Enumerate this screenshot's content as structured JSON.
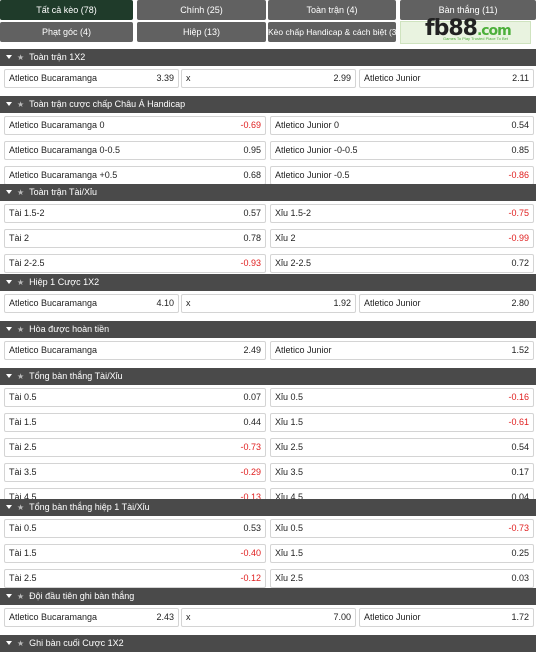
{
  "tabs": [
    {
      "label": "Tất cả kèo (78)",
      "active": true
    },
    {
      "label": "Chính (25)"
    },
    {
      "label": "Toàn trận (4)"
    },
    {
      "label": "Bàn thắng (11)"
    },
    {
      "label": "Phạt góc (4)"
    },
    {
      "label": "Hiệp (13)"
    },
    {
      "label": "Kèo chấp Handicap & cách biệt (3)"
    }
  ],
  "logo": {
    "main": "fb88",
    "suffix": ".com",
    "tagline": "Games To Play   Trusted Place To Bet"
  },
  "sections": [
    {
      "title": "Toàn trận 1X2",
      "cols": 3,
      "rows": [
        [
          {
            "label": "Atletico Bucaramanga",
            "odd": "3.39"
          },
          {
            "label": "x",
            "odd": "2.99"
          },
          {
            "label": "Atletico Junior",
            "odd": "2.11"
          }
        ]
      ]
    },
    {
      "title": "Toàn trận cược chấp Châu Á Handicap",
      "cols": 2,
      "rows": [
        [
          {
            "label": "Atletico Bucaramanga 0",
            "odd": "-0.69"
          },
          {
            "label": "Atletico Junior 0",
            "odd": "0.54"
          }
        ],
        [
          {
            "label": "Atletico Bucaramanga 0-0.5",
            "odd": "0.95"
          },
          {
            "label": "Atletico Junior -0-0.5",
            "odd": "0.85"
          }
        ],
        [
          {
            "label": "Atletico Bucaramanga +0.5",
            "odd": "0.68"
          },
          {
            "label": "Atletico Junior -0.5",
            "odd": "-0.86"
          }
        ]
      ]
    },
    {
      "title": "Toàn trận Tài/Xỉu",
      "cols": 2,
      "rows": [
        [
          {
            "label": "Tài 1.5-2",
            "odd": "0.57"
          },
          {
            "label": "Xỉu 1.5-2",
            "odd": "-0.75"
          }
        ],
        [
          {
            "label": "Tài 2",
            "odd": "0.78"
          },
          {
            "label": "Xỉu 2",
            "odd": "-0.99"
          }
        ],
        [
          {
            "label": "Tài 2-2.5",
            "odd": "-0.93"
          },
          {
            "label": "Xỉu 2-2.5",
            "odd": "0.72"
          }
        ]
      ]
    },
    {
      "title": "Hiệp 1 Cược 1X2",
      "cols": 3,
      "rows": [
        [
          {
            "label": "Atletico Bucaramanga",
            "odd": "4.10"
          },
          {
            "label": "x",
            "odd": "1.92"
          },
          {
            "label": "Atletico Junior",
            "odd": "2.80"
          }
        ]
      ]
    },
    {
      "title": "Hòa được hoàn tiền",
      "cols": 2,
      "rows": [
        [
          {
            "label": "Atletico Bucaramanga",
            "odd": "2.49"
          },
          {
            "label": "Atletico Junior",
            "odd": "1.52"
          }
        ]
      ]
    },
    {
      "title": "Tổng bàn thắng Tài/Xỉu",
      "cols": 2,
      "rows": [
        [
          {
            "label": "Tài 0.5",
            "odd": "0.07"
          },
          {
            "label": "Xỉu 0.5",
            "odd": "-0.16"
          }
        ],
        [
          {
            "label": "Tài 1.5",
            "odd": "0.44"
          },
          {
            "label": "Xỉu 1.5",
            "odd": "-0.61"
          }
        ],
        [
          {
            "label": "Tài 2.5",
            "odd": "-0.73"
          },
          {
            "label": "Xỉu 2.5",
            "odd": "0.54"
          }
        ],
        [
          {
            "label": "Tài 3.5",
            "odd": "-0.29"
          },
          {
            "label": "Xỉu 3.5",
            "odd": "0.17"
          }
        ],
        [
          {
            "label": "Tài 4.5",
            "odd": "-0.13"
          },
          {
            "label": "Xỉu 4.5",
            "odd": "0.04"
          }
        ]
      ]
    },
    {
      "title": "Tổng bàn thắng hiệp 1 Tài/Xỉu",
      "cols": 2,
      "rows": [
        [
          {
            "label": "Tài 0.5",
            "odd": "0.53"
          },
          {
            "label": "Xỉu 0.5",
            "odd": "-0.73"
          }
        ],
        [
          {
            "label": "Tài 1.5",
            "odd": "-0.40"
          },
          {
            "label": "Xỉu 1.5",
            "odd": "0.25"
          }
        ],
        [
          {
            "label": "Tài 2.5",
            "odd": "-0.12"
          },
          {
            "label": "Xỉu 2.5",
            "odd": "0.03"
          }
        ]
      ]
    },
    {
      "title": "Đội đầu tiên ghi bàn thắng",
      "cols": 3,
      "rows": [
        [
          {
            "label": "Atletico Bucaramanga",
            "odd": "2.43"
          },
          {
            "label": "x",
            "odd": "7.00"
          },
          {
            "label": "Atletico Junior",
            "odd": "1.72"
          }
        ]
      ]
    },
    {
      "title": "Ghi bàn cuối Cược 1X2",
      "cols": 3,
      "rows": []
    }
  ]
}
